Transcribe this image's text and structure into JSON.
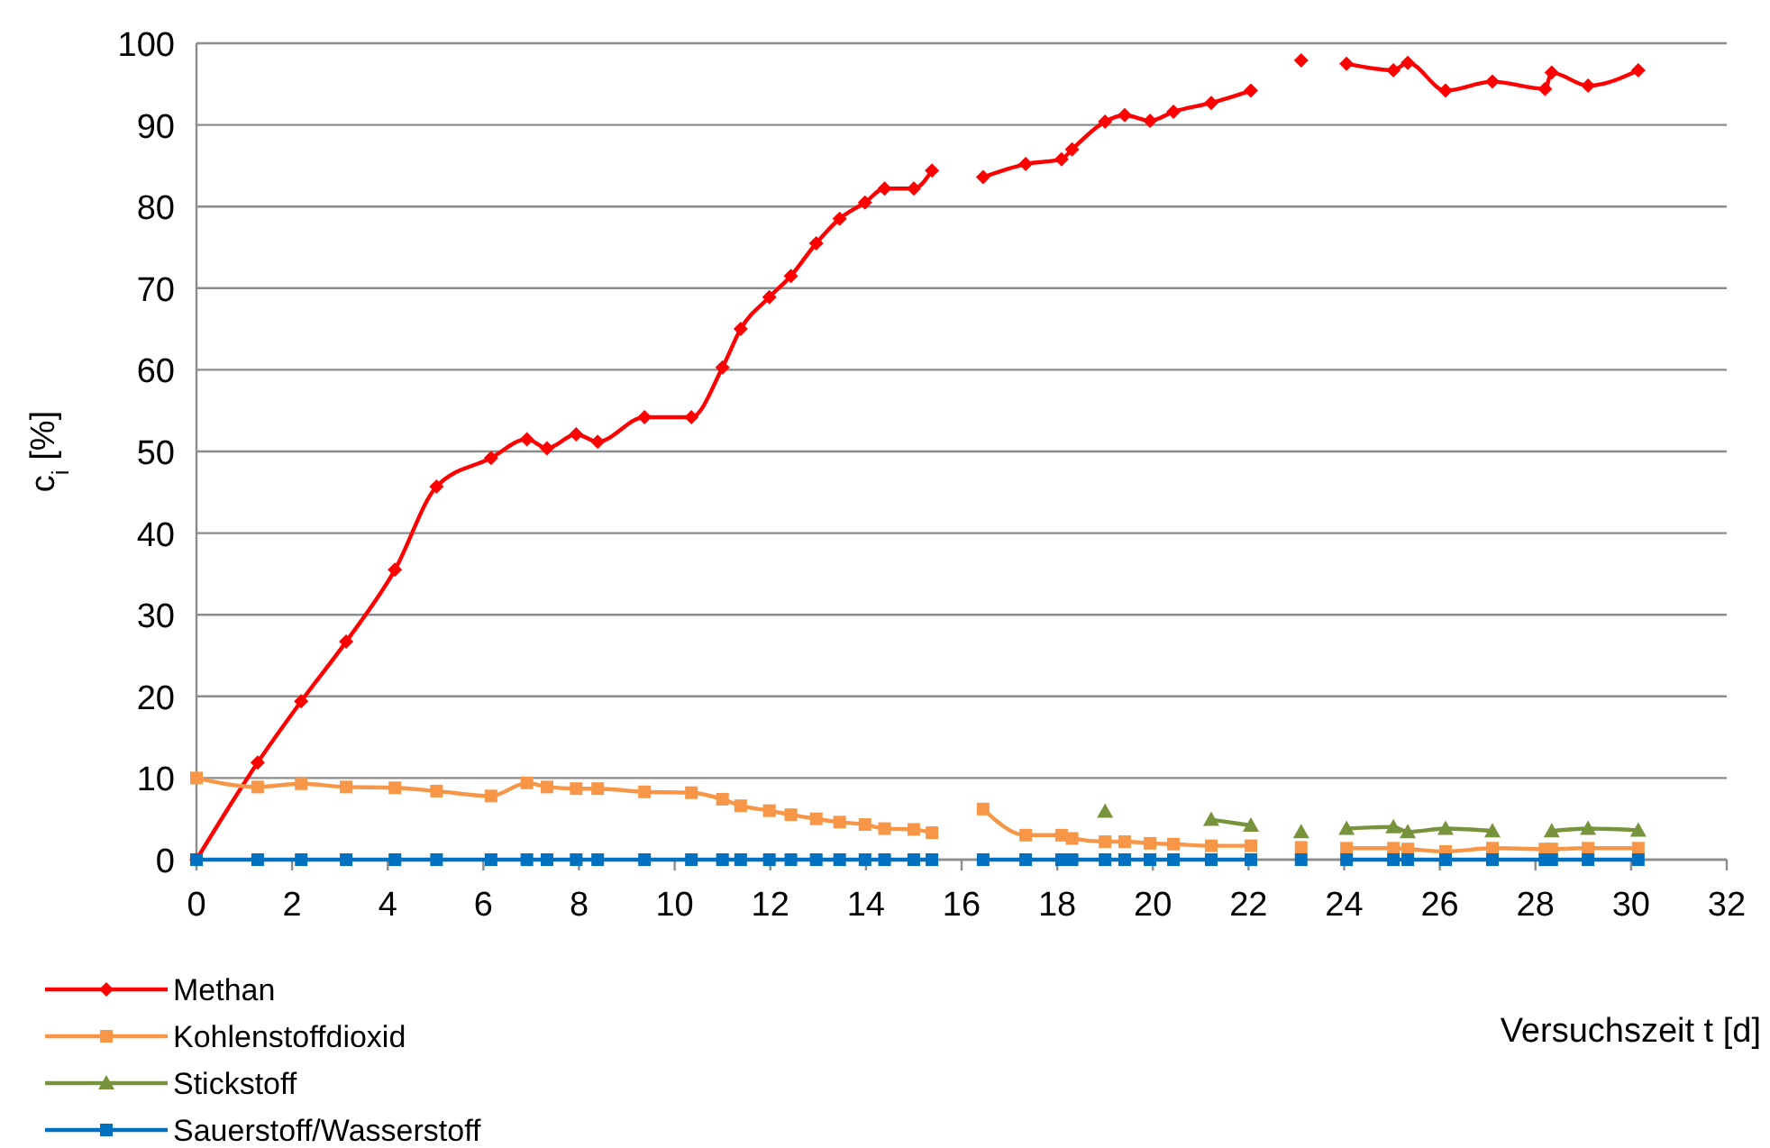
{
  "chart_data": {
    "type": "line",
    "xlabel": "Versuchszeit t [d]",
    "ylabel": "c$_{i}$ [%]",
    "x": [
      0,
      1.28,
      2.19,
      3.13,
      4.15,
      5.02,
      6.16,
      6.91,
      7.33,
      7.94,
      8.39,
      9.37,
      10.35,
      11.0,
      11.38,
      11.98,
      12.43,
      12.96,
      13.45,
      13.98,
      14.39,
      15.0,
      15.38,
      15.9,
      16.45,
      17.34,
      18.09,
      18.31,
      19.0,
      19.41,
      19.94,
      20.43,
      21.22,
      22.05,
      22.6,
      23.1,
      23.6,
      24.05,
      25.03,
      25.33,
      26.12,
      27.1,
      28.2,
      28.34,
      29.1,
      30.15
    ],
    "series": [
      {
        "name": "Methan",
        "color": "#ff0000",
        "marker": "diamond",
        "values": [
          0,
          11.9,
          19.4,
          26.7,
          35.5,
          45.7,
          49.2,
          51.5,
          50.4,
          52.1,
          51.2,
          54.2,
          54.2,
          60.3,
          65,
          68.9,
          71.5,
          75.5,
          78.5,
          80.5,
          82.2,
          82.2,
          84.4,
          null,
          83.6,
          85.2,
          85.8,
          87,
          90.4,
          91.2,
          90.5,
          91.6,
          92.7,
          94.2,
          null,
          97.9,
          null,
          97.5,
          96.7,
          97.6,
          94.2,
          95.3,
          94.4,
          96.4,
          94.8,
          96.7
        ]
      },
      {
        "name": "Kohlenstoffdioxid",
        "color": "#f79646",
        "marker": "square",
        "values": [
          10.0,
          8.9,
          9.3,
          8.9,
          8.8,
          8.4,
          7.8,
          9.4,
          8.9,
          8.7,
          8.7,
          8.3,
          8.2,
          7.4,
          6.6,
          6.0,
          5.5,
          5.0,
          4.6,
          4.3,
          3.8,
          3.7,
          3.3,
          null,
          6.2,
          3.0,
          3.0,
          2.6,
          2.2,
          2.2,
          2.0,
          1.9,
          1.7,
          1.7,
          null,
          1.5,
          null,
          1.4,
          1.4,
          1.3,
          1.0,
          1.4,
          1.3,
          1.3,
          1.4,
          1.4
        ]
      },
      {
        "name": "Stickstoff",
        "color": "#77933c",
        "marker": "triangle",
        "values": [
          null,
          null,
          null,
          null,
          null,
          null,
          null,
          null,
          null,
          null,
          null,
          null,
          null,
          null,
          null,
          null,
          null,
          null,
          null,
          null,
          null,
          null,
          null,
          null,
          null,
          null,
          null,
          null,
          5.9,
          null,
          null,
          null,
          4.9,
          4.2,
          null,
          3.4,
          null,
          3.8,
          4.0,
          3.4,
          3.8,
          3.5,
          null,
          3.5,
          3.8,
          3.6
        ]
      },
      {
        "name": "Sauerstoff/Wasserstoff",
        "color": "#0070c0",
        "marker": "square",
        "values": [
          0,
          0,
          0,
          0,
          0,
          0,
          0,
          0,
          0,
          0,
          0,
          0,
          0,
          0,
          0,
          0,
          0,
          0,
          0,
          0,
          0,
          0,
          0,
          null,
          0,
          0,
          0,
          0,
          0,
          0,
          0,
          0,
          0,
          0,
          null,
          0,
          null,
          0,
          0,
          0,
          0,
          0,
          0,
          0,
          0,
          0
        ]
      }
    ],
    "xlim": [
      0,
      32
    ],
    "xticks": [
      0,
      2,
      4,
      6,
      8,
      10,
      12,
      14,
      16,
      18,
      20,
      22,
      24,
      26,
      28,
      30,
      32
    ],
    "ylim": [
      0,
      100
    ],
    "yticks": [
      0,
      10,
      20,
      30,
      40,
      50,
      60,
      70,
      80,
      90,
      100
    ],
    "grid": "y",
    "legend": "bottom left",
    "line_style": "solid"
  }
}
